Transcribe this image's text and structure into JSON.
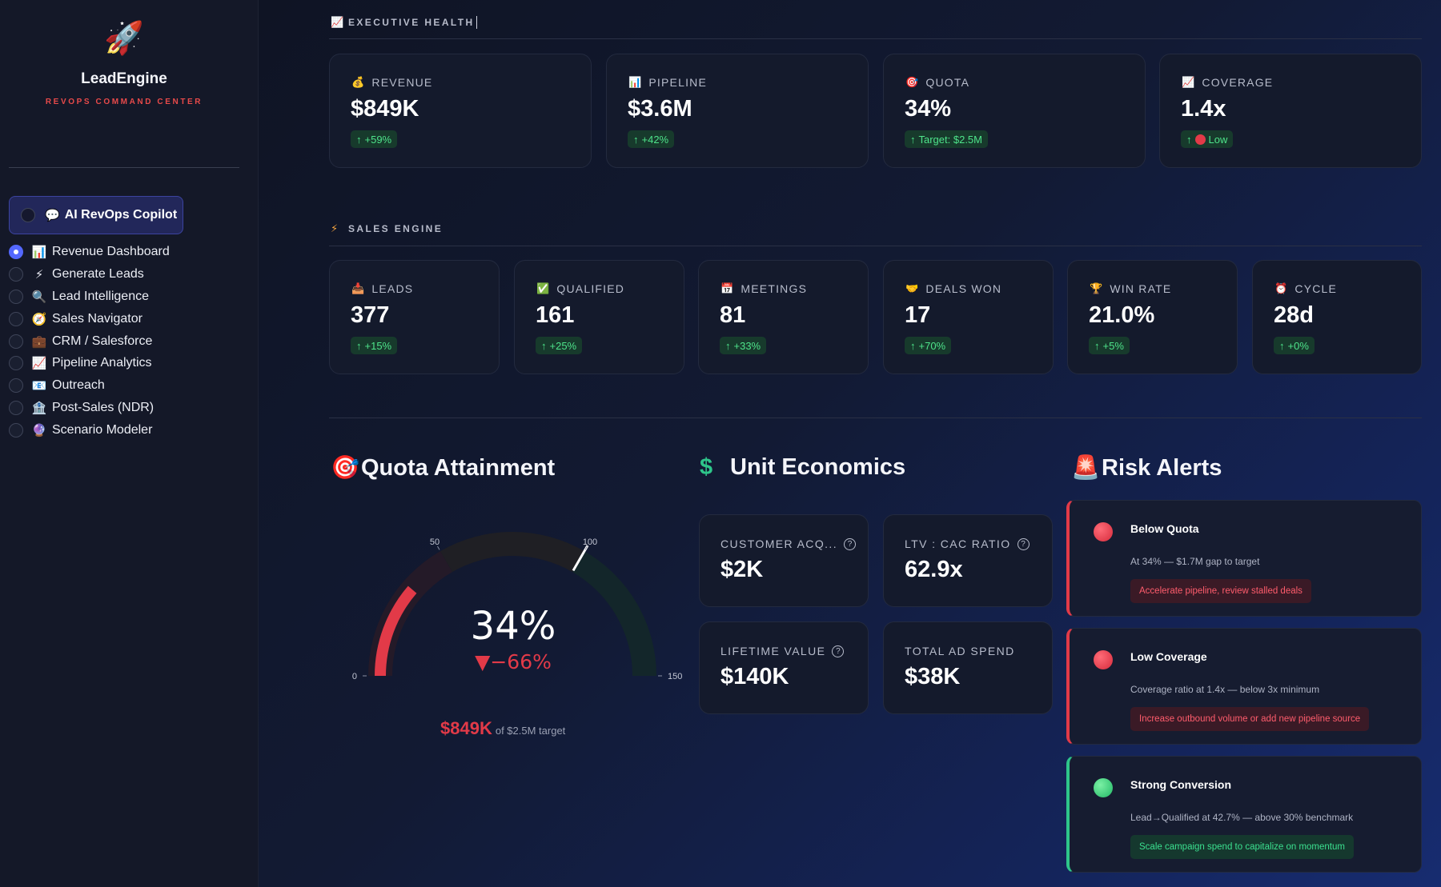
{
  "brand": {
    "icon": "🚀",
    "name": "LeadEngine",
    "subtitle": "REVOPS COMMAND CENTER"
  },
  "copilot": {
    "icon": "💬",
    "label": "AI RevOps Copilot",
    "selected": false
  },
  "nav": {
    "items": [
      {
        "icon": "📊",
        "label": "Revenue Dashboard",
        "selected": true
      },
      {
        "icon": "⚡",
        "label": "Generate Leads",
        "selected": false
      },
      {
        "icon": "🔍",
        "label": "Lead Intelligence",
        "selected": false
      },
      {
        "icon": "🧭",
        "label": "Sales Navigator",
        "selected": false
      },
      {
        "icon": "💼",
        "label": "CRM / Salesforce",
        "selected": false
      },
      {
        "icon": "📈",
        "label": "Pipeline Analytics",
        "selected": false
      },
      {
        "icon": "📧",
        "label": "Outreach",
        "selected": false
      },
      {
        "icon": "🏦",
        "label": "Post-Sales (NDR)",
        "selected": false
      },
      {
        "icon": "🔮",
        "label": "Scenario Modeler",
        "selected": false
      }
    ]
  },
  "executive": {
    "icon": "📈",
    "title": "EXECUTIVE HEALTH",
    "cards": [
      {
        "icon": "💰",
        "label": "REVENUE",
        "value": "$849K",
        "delta": "+59%"
      },
      {
        "icon": "📊",
        "label": "PIPELINE",
        "value": "$3.6M",
        "delta": "+42%"
      },
      {
        "icon": "🎯",
        "label": "QUOTA",
        "value": "34%",
        "delta": "Target: $2.5M"
      },
      {
        "icon": "📈",
        "label": "COVERAGE",
        "value": "1.4x",
        "delta": "Low"
      }
    ]
  },
  "engine": {
    "icon": "⚡",
    "title": "SALES ENGINE",
    "cards": [
      {
        "icon": "📥",
        "label": "LEADS",
        "value": "377",
        "delta": "+15%"
      },
      {
        "icon": "✅",
        "label": "QUALIFIED",
        "value": "161",
        "delta": "+25%"
      },
      {
        "icon": "📅",
        "label": "MEETINGS",
        "value": "81",
        "delta": "+33%"
      },
      {
        "icon": "🤝",
        "label": "DEALS WON",
        "value": "17",
        "delta": "+70%"
      },
      {
        "icon": "🏆",
        "label": "WIN RATE",
        "value": "21.0%",
        "delta": "+5%"
      },
      {
        "icon": "⏰",
        "label": "CYCLE",
        "value": "28d",
        "delta": "+0%"
      }
    ]
  },
  "quota": {
    "icon": "🎯",
    "title": "Quota Attainment",
    "value": "34%",
    "delta": "▼−66%",
    "gauge": {
      "value": 34,
      "min": 0,
      "max": 150,
      "threshold": 100,
      "ticks": [
        "0",
        "50",
        "100",
        "150"
      ]
    },
    "amount": "$849K",
    "of_target": "of $2.5M target",
    "colors": {
      "bar": "#e23a48",
      "band_low": "#241a28",
      "band_mid": "#1f1f24",
      "band_high": "#13262a"
    }
  },
  "unit": {
    "icon": "$",
    "title": "Unit Economics",
    "cards": [
      {
        "label": "CUSTOMER ACQ...",
        "value": "$2K",
        "help": true
      },
      {
        "label": "LTV : CAC RATIO",
        "value": "62.9x",
        "help": true
      },
      {
        "label": "LIFETIME VALUE",
        "value": "$140K",
        "help": true
      },
      {
        "label": "TOTAL AD SPEND",
        "value": "$38K",
        "help": false
      }
    ]
  },
  "risk": {
    "icon": "🚨",
    "title": "Risk Alerts",
    "alerts": [
      {
        "level": "red",
        "title": "Below Quota",
        "body": "At 34% — $1.7M gap to target",
        "action": "Accelerate pipeline, review stalled deals"
      },
      {
        "level": "red",
        "title": "Low Coverage",
        "body": "Coverage ratio at 1.4x — below 3x minimum",
        "action": "Increase outbound volume or add new pipeline source"
      },
      {
        "level": "green",
        "title": "Strong Conversion",
        "body": "Lead→Qualified at 42.7% — above 30% benchmark",
        "action": "Scale campaign spend to capitalize on momentum"
      }
    ]
  }
}
